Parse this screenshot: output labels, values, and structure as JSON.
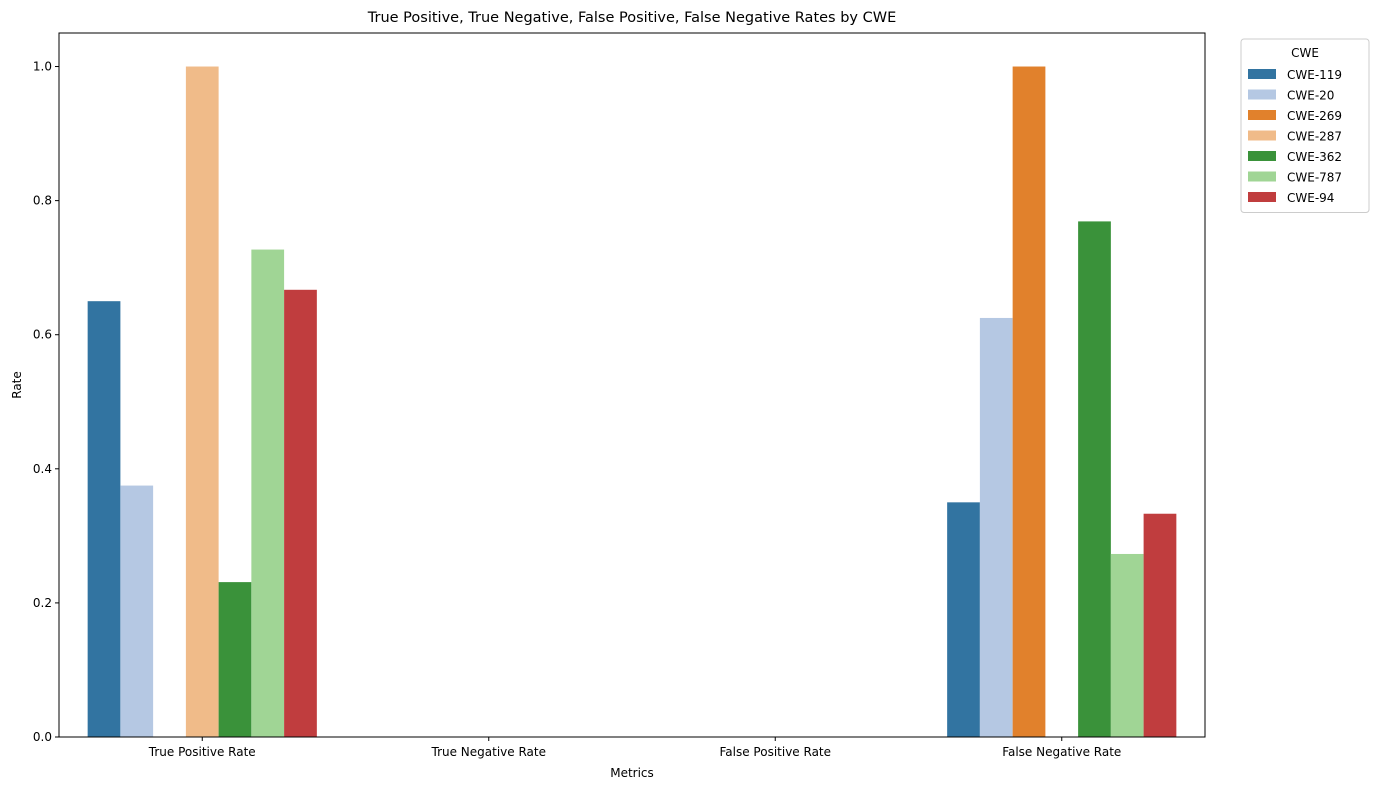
{
  "chart_data": {
    "type": "bar",
    "title": "True Positive, True Negative, False Positive, False Negative Rates by CWE",
    "xlabel": "Metrics",
    "ylabel": "Rate",
    "ylim": [
      0,
      1.05
    ],
    "yticks": [
      "0.0",
      "0.2",
      "0.4",
      "0.6",
      "0.8",
      "1.0"
    ],
    "grid": false,
    "legend_title": "CWE",
    "legend_position": "outside-top-right",
    "categories": [
      "True Positive Rate",
      "True Negative Rate",
      "False Positive Rate",
      "False Negative Rate"
    ],
    "series": [
      {
        "name": "CWE-119",
        "color": "#3274a1",
        "values": [
          0.65,
          0,
          0,
          0.35
        ]
      },
      {
        "name": "CWE-20",
        "color": "#b5c8e3",
        "values": [
          0.375,
          0,
          0,
          0.625
        ]
      },
      {
        "name": "CWE-269",
        "color": "#e1812c",
        "values": [
          0,
          0,
          0,
          1.0
        ]
      },
      {
        "name": "CWE-287",
        "color": "#f0bb89",
        "values": [
          1.0,
          0,
          0,
          0
        ]
      },
      {
        "name": "CWE-362",
        "color": "#3a923a",
        "values": [
          0.231,
          0,
          0,
          0.769
        ]
      },
      {
        "name": "CWE-787",
        "color": "#a0d595",
        "values": [
          0.727,
          0,
          0,
          0.273
        ]
      },
      {
        "name": "CWE-94",
        "color": "#c03d3e",
        "values": [
          0.667,
          0,
          0,
          0.333
        ]
      }
    ]
  }
}
